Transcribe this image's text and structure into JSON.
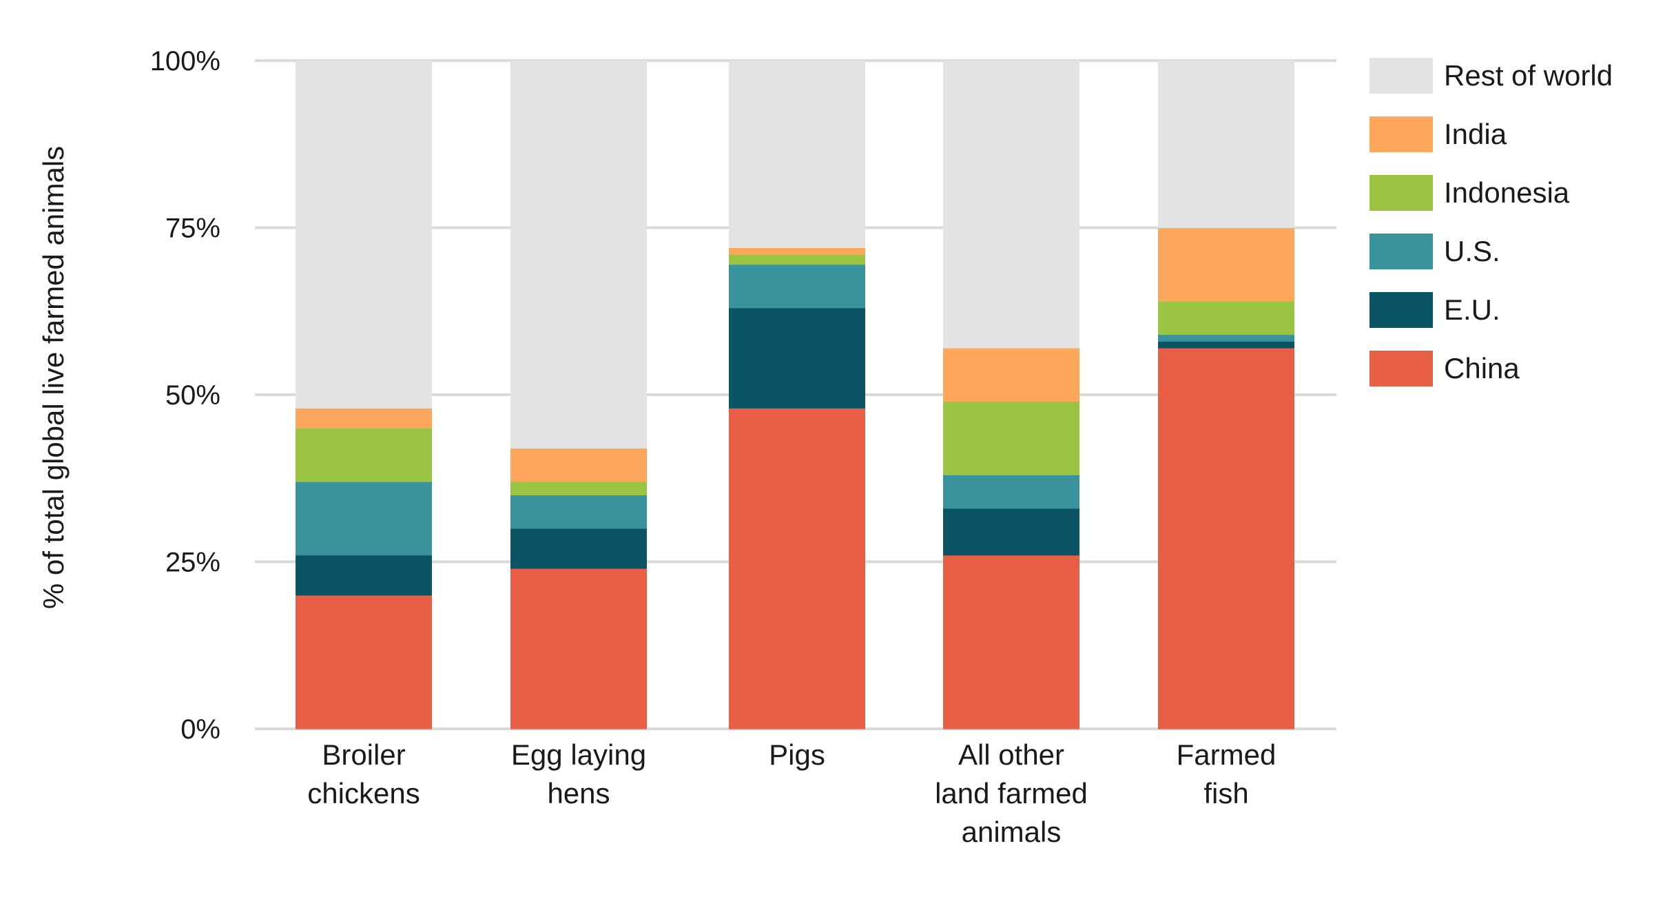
{
  "chart_data": {
    "type": "bar",
    "stacked": true,
    "ylabel": "% of total global live farmed animals",
    "xlabel": "",
    "ylim": [
      0,
      100
    ],
    "yticks": [
      0,
      25,
      50,
      75,
      100
    ],
    "ytick_labels": [
      "0%",
      "25%",
      "50%",
      "75%",
      "100%"
    ],
    "grid": true,
    "legend_position": "right",
    "categories": [
      "Broiler chickens",
      "Egg laying hens",
      "Pigs",
      "All other land farmed animals",
      "Farmed fish"
    ],
    "category_label_lines": [
      [
        "Broiler",
        "chickens"
      ],
      [
        "Egg laying",
        "hens"
      ],
      [
        "Pigs"
      ],
      [
        "All other",
        "land farmed",
        "animals"
      ],
      [
        "Farmed",
        "fish"
      ]
    ],
    "series": [
      {
        "name": "China",
        "color": "#e85f46",
        "values": [
          20,
          24,
          48,
          26,
          57
        ]
      },
      {
        "name": "E.U.",
        "color": "#0b5466",
        "values": [
          6,
          6,
          15,
          7,
          1
        ]
      },
      {
        "name": "U.S.",
        "color": "#39939c",
        "values": [
          11,
          5,
          6.5,
          5,
          1
        ]
      },
      {
        "name": "Indonesia",
        "color": "#9bc443",
        "values": [
          8,
          2,
          1.5,
          11,
          5
        ]
      },
      {
        "name": "India",
        "color": "#fca75b",
        "values": [
          3,
          5,
          1,
          8,
          11
        ]
      },
      {
        "name": "Rest of world",
        "color": "#e3e3e3",
        "values": [
          52,
          58,
          28,
          43,
          25
        ]
      }
    ],
    "legend_order": [
      "Rest of world",
      "India",
      "Indonesia",
      "U.S.",
      "E.U.",
      "China"
    ]
  }
}
